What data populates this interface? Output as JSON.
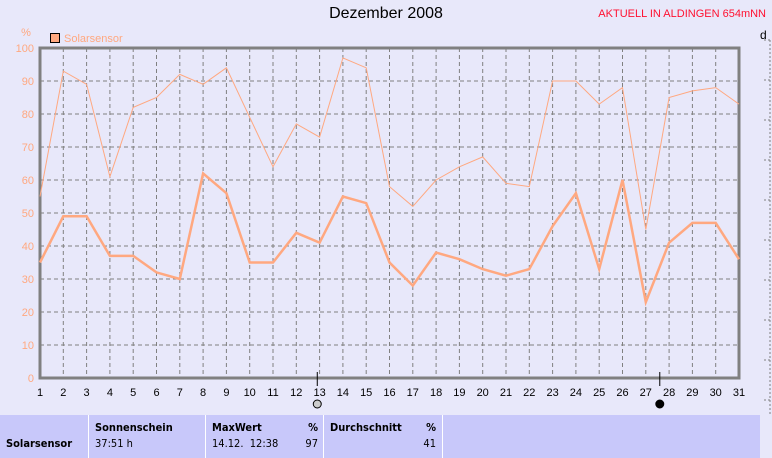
{
  "header": {
    "title": "Dezember 2008",
    "subtitle": "AKTUELL IN ALDINGEN 654mNN",
    "right_label": "d"
  },
  "chart_data": {
    "type": "line",
    "title": "Dezember 2008",
    "ylabel": "%",
    "ylim": [
      0,
      100
    ],
    "yticks": [
      "0",
      "10",
      "20",
      "30",
      "40",
      "50",
      "60",
      "70",
      "80",
      "90",
      "100"
    ],
    "x": [
      1,
      2,
      3,
      4,
      5,
      6,
      7,
      8,
      9,
      10,
      11,
      12,
      13,
      14,
      15,
      16,
      17,
      18,
      19,
      20,
      21,
      22,
      23,
      24,
      25,
      26,
      27,
      28,
      29,
      30,
      31
    ],
    "xticks": [
      "1",
      "2",
      "3",
      "4",
      "5",
      "6",
      "7",
      "8",
      "9",
      "10",
      "11",
      "12",
      "13",
      "14",
      "15",
      "16",
      "17",
      "18",
      "19",
      "20",
      "21",
      "22",
      "23",
      "24",
      "25",
      "26",
      "27",
      "28",
      "29",
      "30",
      "31"
    ],
    "grid": true,
    "legend": "top-left",
    "color": "#ffa880",
    "series": [
      {
        "name": "Solarsensor",
        "values": [
          35,
          49,
          49,
          37,
          37,
          32,
          30,
          62,
          56,
          35,
          35,
          44,
          41,
          55,
          53,
          35,
          28,
          38,
          36,
          33,
          31,
          33,
          46,
          56,
          33,
          60,
          23,
          41,
          47,
          47,
          36
        ]
      },
      {
        "values": [
          55,
          93,
          89,
          61,
          82,
          85,
          92,
          89,
          94,
          79,
          64,
          77,
          73,
          97,
          94,
          58,
          52,
          60,
          64,
          67,
          59,
          58,
          90,
          90,
          83,
          88,
          45,
          85,
          87,
          88,
          83
        ]
      }
    ],
    "moon_phases": [
      {
        "day": 12.9,
        "phase": "full-moon"
      },
      {
        "day": 27.6,
        "phase": "new-moon"
      }
    ]
  },
  "stats": {
    "row_label": "Solarsensor",
    "sun_header": "Sonnenschein",
    "sun_value": "37:51 h",
    "max_header": "MaxWert",
    "max_unit": "%",
    "max_time": "14.12.  12:38",
    "max_value": "97",
    "avg_header": "Durchschnitt",
    "avg_unit": "%",
    "avg_value": "41"
  }
}
